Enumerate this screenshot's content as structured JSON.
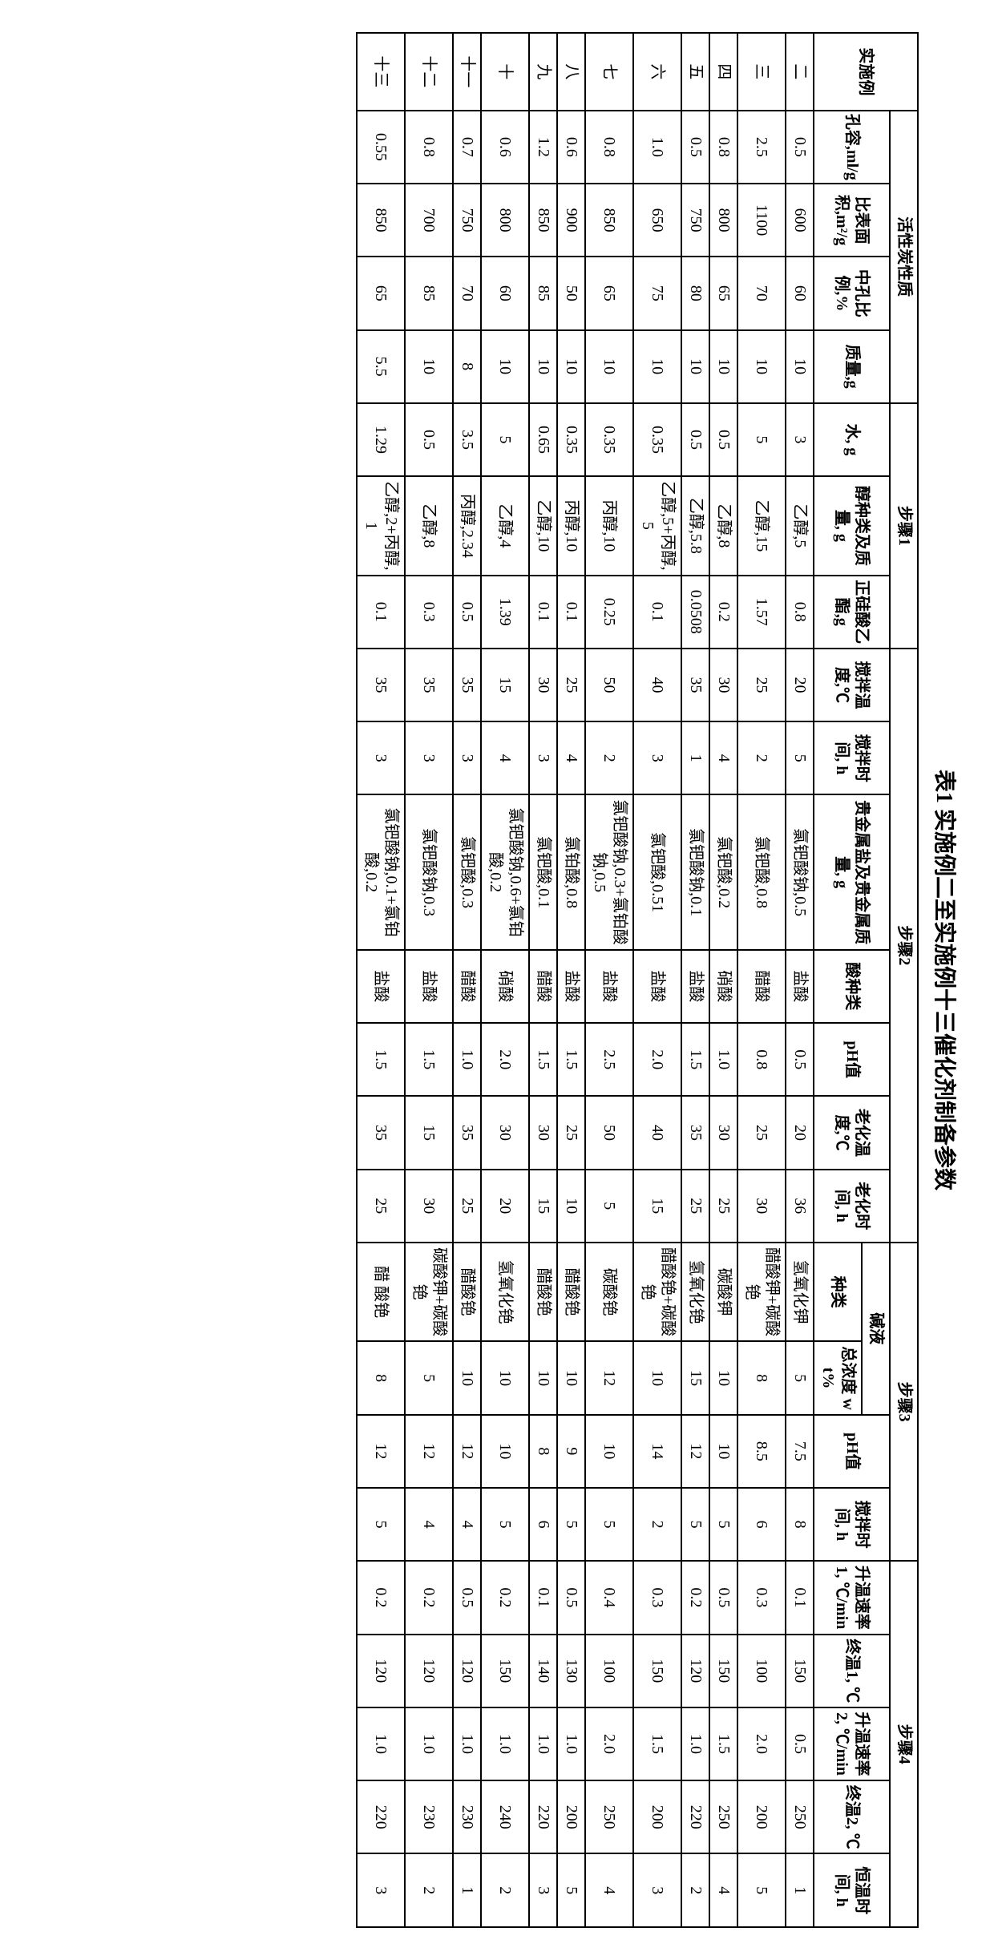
{
  "caption": "表1 实施例二至实施例十三催化剂制备参数",
  "groupHeaders": {
    "example": "实施例",
    "acProps": "活性炭性质",
    "step1": "步骤1",
    "step2": "步骤2",
    "step3": "步骤3",
    "step4": "步骤4"
  },
  "subGroups": {
    "alkali": "碱液"
  },
  "cols": {
    "poreVol": "孔容,ml/g",
    "surfArea": "比表面积,m²/g",
    "mesoPct": "中孔比例,%",
    "mass": "质量,g",
    "water": "水, g",
    "alcohol": "醇种类及质量, g",
    "teos": "正硅酸乙酯,g",
    "stirTemp2": "搅拌温度,℃",
    "stirTime2": "搅拌时间, h",
    "metalSalt": "贵金属盐及贵金属质量, g",
    "acidType": "酸种类",
    "phVal2": "pH值",
    "ageTemp": "老化温度,℃",
    "ageTime": "老化时间, h",
    "alkaliType": "种类",
    "alkaliConc": "总浓度 wt%",
    "phVal3": "pH值",
    "stirTime3": "搅拌时间, h",
    "rampRate1": "升温速率1, ℃/min",
    "finalT1": "终温1, ℃",
    "rampRate2": "升温速率2, ℃/min",
    "finalT2": "终温2, ℃",
    "holdTime": "恒温时间, h"
  },
  "rows": [
    {
      "ex": "二",
      "poreVol": "0.5",
      "surfArea": "600",
      "mesoPct": "60",
      "mass": "10",
      "water": "3",
      "alcohol": "乙醇,5",
      "teos": "0.8",
      "stirTemp2": "20",
      "stirTime2": "5",
      "metalSalt": "氯钯酸钠,0.5",
      "acidType": "盐酸",
      "phVal2": "0.5",
      "ageTemp": "20",
      "ageTime": "36",
      "alkaliType": "氢氧化钾",
      "alkaliConc": "5",
      "phVal3": "7.5",
      "stirTime3": "8",
      "rampRate1": "0.1",
      "finalT1": "150",
      "rampRate2": "0.5",
      "finalT2": "250",
      "holdTime": "1"
    },
    {
      "ex": "三",
      "poreVol": "2.5",
      "surfArea": "1100",
      "mesoPct": "70",
      "mass": "10",
      "water": "5",
      "alcohol": "乙醇,15",
      "teos": "1.57",
      "stirTemp2": "25",
      "stirTime2": "2",
      "metalSalt": "氯钯酸,0.8",
      "acidType": "醋酸",
      "phVal2": "0.8",
      "ageTemp": "25",
      "ageTime": "30",
      "alkaliType": "醋酸钾+碳酸铯",
      "alkaliConc": "8",
      "phVal3": "8.5",
      "stirTime3": "6",
      "rampRate1": "0.3",
      "finalT1": "100",
      "rampRate2": "2.0",
      "finalT2": "200",
      "holdTime": "5"
    },
    {
      "ex": "四",
      "poreVol": "0.8",
      "surfArea": "800",
      "mesoPct": "65",
      "mass": "10",
      "water": "0.5",
      "alcohol": "乙醇,8",
      "teos": "0.2",
      "stirTemp2": "30",
      "stirTime2": "4",
      "metalSalt": "氯钯酸,0.2",
      "acidType": "硝酸",
      "phVal2": "1.0",
      "ageTemp": "30",
      "ageTime": "25",
      "alkaliType": "碳酸钾",
      "alkaliConc": "10",
      "phVal3": "10",
      "stirTime3": "5",
      "rampRate1": "0.5",
      "finalT1": "150",
      "rampRate2": "1.5",
      "finalT2": "250",
      "holdTime": "4"
    },
    {
      "ex": "五",
      "poreVol": "0.5",
      "surfArea": "750",
      "mesoPct": "80",
      "mass": "10",
      "water": "0.5",
      "alcohol": "乙醇,5.8",
      "teos": "0.0508",
      "stirTemp2": "35",
      "stirTime2": "1",
      "metalSalt": "氯钯酸钠,0.1",
      "acidType": "盐酸",
      "phVal2": "1.5",
      "ageTemp": "35",
      "ageTime": "25",
      "alkaliType": "氢氧化铯",
      "alkaliConc": "15",
      "phVal3": "12",
      "stirTime3": "5",
      "rampRate1": "0.2",
      "finalT1": "120",
      "rampRate2": "1.0",
      "finalT2": "220",
      "holdTime": "2"
    },
    {
      "ex": "六",
      "poreVol": "1.0",
      "surfArea": "650",
      "mesoPct": "75",
      "mass": "10",
      "water": "0.35",
      "alcohol": "乙醇,5+丙醇,5",
      "teos": "0.1",
      "stirTemp2": "40",
      "stirTime2": "3",
      "metalSalt": "氯钯酸,0.51",
      "acidType": "盐酸",
      "phVal2": "2.0",
      "ageTemp": "40",
      "ageTime": "15",
      "alkaliType": "醋酸铯+碳酸铯",
      "alkaliConc": "10",
      "phVal3": "14",
      "stirTime3": "2",
      "rampRate1": "0.3",
      "finalT1": "150",
      "rampRate2": "1.5",
      "finalT2": "200",
      "holdTime": "3"
    },
    {
      "ex": "七",
      "poreVol": "0.8",
      "surfArea": "850",
      "mesoPct": "65",
      "mass": "10",
      "water": "0.35",
      "alcohol": "丙醇,10",
      "teos": "0.25",
      "stirTemp2": "50",
      "stirTime2": "2",
      "metalSalt": "氯钯酸钠,0.3+氯铂酸钠,0.5",
      "acidType": "盐酸",
      "phVal2": "2.5",
      "ageTemp": "50",
      "ageTime": "5",
      "alkaliType": "碳酸铯",
      "alkaliConc": "12",
      "phVal3": "10",
      "stirTime3": "5",
      "rampRate1": "0.4",
      "finalT1": "100",
      "rampRate2": "2.0",
      "finalT2": "250",
      "holdTime": "4"
    },
    {
      "ex": "八",
      "poreVol": "0.6",
      "surfArea": "900",
      "mesoPct": "50",
      "mass": "10",
      "water": "0.35",
      "alcohol": "丙醇,10",
      "teos": "0.1",
      "stirTemp2": "25",
      "stirTime2": "4",
      "metalSalt": "氯铂酸,0.8",
      "acidType": "盐酸",
      "phVal2": "1.5",
      "ageTemp": "25",
      "ageTime": "10",
      "alkaliType": "醋酸铯",
      "alkaliConc": "10",
      "phVal3": "9",
      "stirTime3": "5",
      "rampRate1": "0.5",
      "finalT1": "130",
      "rampRate2": "1.0",
      "finalT2": "200",
      "holdTime": "5"
    },
    {
      "ex": "九",
      "poreVol": "1.2",
      "surfArea": "850",
      "mesoPct": "85",
      "mass": "10",
      "water": "0.65",
      "alcohol": "乙醇,10",
      "teos": "0.1",
      "stirTemp2": "30",
      "stirTime2": "3",
      "metalSalt": "氯钯酸,0.1",
      "acidType": "醋酸",
      "phVal2": "1.5",
      "ageTemp": "30",
      "ageTime": "15",
      "alkaliType": "醋酸铯",
      "alkaliConc": "10",
      "phVal3": "8",
      "stirTime3": "6",
      "rampRate1": "0.1",
      "finalT1": "140",
      "rampRate2": "1.0",
      "finalT2": "220",
      "holdTime": "3"
    },
    {
      "ex": "十",
      "poreVol": "0.6",
      "surfArea": "800",
      "mesoPct": "60",
      "mass": "10",
      "water": "5",
      "alcohol": "乙醇,4",
      "teos": "1.39",
      "stirTemp2": "15",
      "stirTime2": "4",
      "metalSalt": "氯钯酸钠,0.6+氯铂酸,0.2",
      "acidType": "硝酸",
      "phVal2": "2.0",
      "ageTemp": "30",
      "ageTime": "20",
      "alkaliType": "氢氧化铯",
      "alkaliConc": "10",
      "phVal3": "10",
      "stirTime3": "5",
      "rampRate1": "0.2",
      "finalT1": "150",
      "rampRate2": "1.0",
      "finalT2": "240",
      "holdTime": "2"
    },
    {
      "ex": "十一",
      "poreVol": "0.7",
      "surfArea": "750",
      "mesoPct": "70",
      "mass": "8",
      "water": "3.5",
      "alcohol": "丙醇,2.34",
      "teos": "0.5",
      "stirTemp2": "35",
      "stirTime2": "3",
      "metalSalt": "氯钯酸,0.3",
      "acidType": "醋酸",
      "phVal2": "1.0",
      "ageTemp": "35",
      "ageTime": "25",
      "alkaliType": "醋酸铯",
      "alkaliConc": "10",
      "phVal3": "12",
      "stirTime3": "4",
      "rampRate1": "0.5",
      "finalT1": "120",
      "rampRate2": "1.0",
      "finalT2": "230",
      "holdTime": "1"
    },
    {
      "ex": "十二",
      "poreVol": "0.8",
      "surfArea": "700",
      "mesoPct": "85",
      "mass": "10",
      "water": "0.5",
      "alcohol": "乙醇,8",
      "teos": "0.3",
      "stirTemp2": "35",
      "stirTime2": "3",
      "metalSalt": "氯钯酸钠,0.3",
      "acidType": "盐酸",
      "phVal2": "1.5",
      "ageTemp": "15",
      "ageTime": "30",
      "alkaliType": "碳酸钾+碳酸铯",
      "alkaliConc": "5",
      "phVal3": "12",
      "stirTime3": "4",
      "rampRate1": "0.2",
      "finalT1": "120",
      "rampRate2": "1.0",
      "finalT2": "230",
      "holdTime": "2"
    },
    {
      "ex": "十三",
      "poreVol": "0.55",
      "surfArea": "850",
      "mesoPct": "65",
      "mass": "5.5",
      "water": "1.29",
      "alcohol": "乙醇,2+丙醇,1",
      "teos": "0.1",
      "stirTemp2": "35",
      "stirTime2": "3",
      "metalSalt": "氯钯酸钠,0.1+氯铂酸,0.2",
      "acidType": "盐酸",
      "phVal2": "1.5",
      "ageTemp": "35",
      "ageTime": "25",
      "alkaliType": "醋 酸铯",
      "alkaliConc": "8",
      "phVal3": "12",
      "stirTime3": "5",
      "rampRate1": "0.2",
      "finalT1": "120",
      "rampRate2": "1.0",
      "finalT2": "220",
      "holdTime": "3"
    }
  ]
}
